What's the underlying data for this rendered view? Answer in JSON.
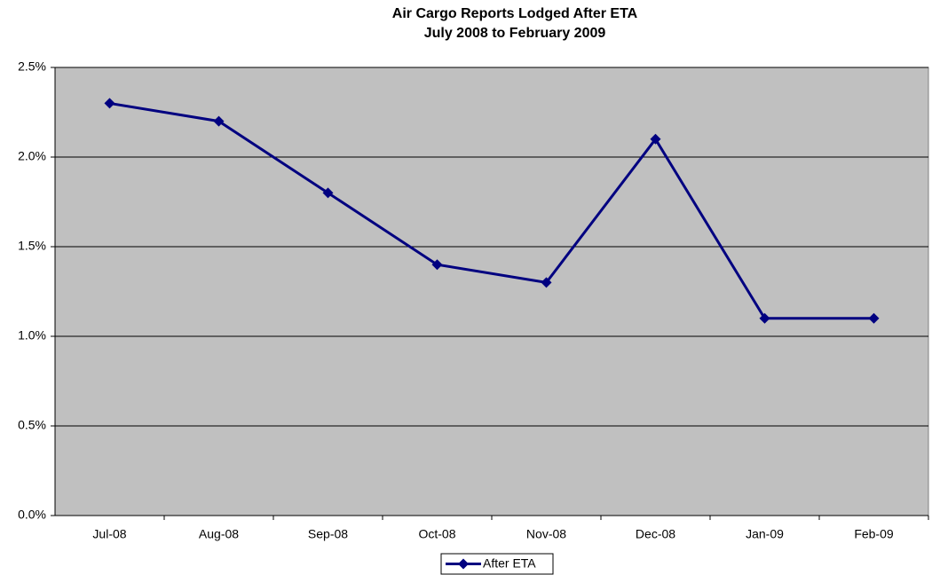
{
  "chart_data": {
    "type": "line",
    "title": "Air Cargo Reports Lodged After ETA",
    "subtitle": "July 2008 to February 2009",
    "categories": [
      "Jul-08",
      "Aug-08",
      "Sep-08",
      "Oct-08",
      "Nov-08",
      "Dec-08",
      "Jan-09",
      "Feb-09"
    ],
    "series": [
      {
        "name": "After ETA",
        "color": "#000080",
        "values": [
          2.3,
          2.2,
          1.8,
          1.4,
          1.3,
          2.1,
          1.1,
          1.1
        ]
      }
    ],
    "ylim": [
      0,
      2.5
    ],
    "yticks": [
      {
        "value": 0,
        "label": "0.0%"
      },
      {
        "value": 0.5,
        "label": "0.5%"
      },
      {
        "value": 1,
        "label": "1.0%"
      },
      {
        "value": 1.5,
        "label": "1.5%"
      },
      {
        "value": 2,
        "label": "2.0%"
      },
      {
        "value": 2.5,
        "label": "2.5%"
      }
    ],
    "grid": true,
    "legend": "bottom"
  }
}
